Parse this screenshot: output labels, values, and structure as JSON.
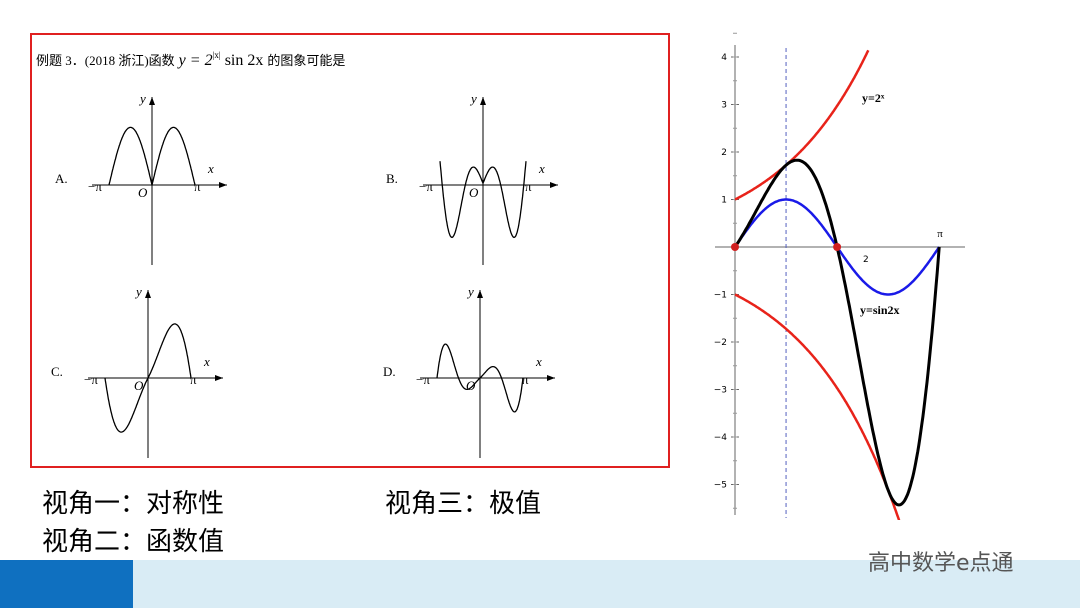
{
  "problem": {
    "prefix": "例题 3．(2018 浙江)函数",
    "formula_base": "y = 2",
    "formula_exp": "|x|",
    "formula_rest": "sin 2x",
    "suffix": "的图象可能是"
  },
  "options": [
    {
      "label": "A.",
      "y": "y",
      "x": "x",
      "origin": "O",
      "neg_pi": "−π",
      "pi": "π"
    },
    {
      "label": "B.",
      "y": "y",
      "x": "x",
      "origin": "O",
      "neg_pi": "−π",
      "pi": "π"
    },
    {
      "label": "C.",
      "y": "y",
      "x": "x",
      "origin": "O",
      "neg_pi": "−π",
      "pi": "π"
    },
    {
      "label": "D.",
      "y": "y",
      "x": "x",
      "origin": "O",
      "neg_pi": "−π",
      "pi": "π"
    }
  ],
  "perspectives": [
    "视角一：对称性",
    "视角二：函数值",
    "视角三：极值"
  ],
  "graph": {
    "yticks": [
      "4",
      "3",
      "2",
      "1",
      "−1",
      "−2",
      "−3",
      "−4",
      "−5"
    ],
    "xticks": [
      "2",
      "π"
    ],
    "curve_labels": [
      "y=2ˣ",
      "y=sin2x"
    ]
  },
  "watermark": "高中数学e点通"
}
